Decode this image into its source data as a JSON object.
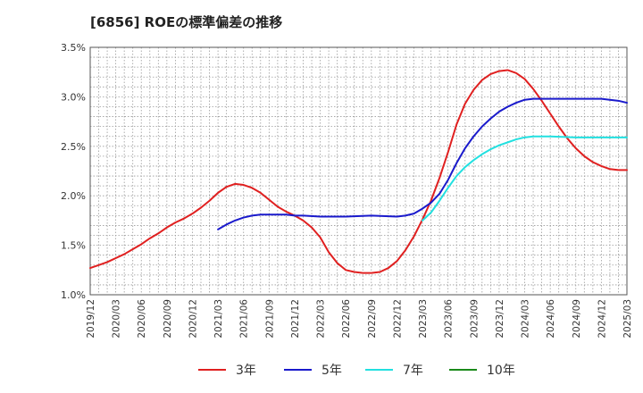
{
  "chart_data": {
    "type": "line",
    "title": "[6856]  ROEの標準偏差の推移",
    "xlabel": "",
    "ylabel": "",
    "ylim": [
      1.0,
      3.5
    ],
    "y_ticks": [
      "1.0%",
      "1.5%",
      "2.0%",
      "2.5%",
      "3.0%",
      "3.5%"
    ],
    "x_ticks": [
      "2019/12",
      "2020/03",
      "2020/06",
      "2020/09",
      "2020/12",
      "2021/03",
      "2021/06",
      "2021/09",
      "2021/12",
      "2022/03",
      "2022/06",
      "2022/09",
      "2022/12",
      "2023/03",
      "2023/06",
      "2023/09",
      "2023/12",
      "2024/03",
      "2024/06",
      "2024/09",
      "2024/12",
      "2025/03"
    ],
    "grid": true,
    "legend_position": "bottom",
    "series": [
      {
        "name": "3年",
        "color": "#e02020",
        "points": [
          [
            "2019/12",
            1.27
          ],
          [
            "2020/01",
            1.3
          ],
          [
            "2020/02",
            1.33
          ],
          [
            "2020/03",
            1.37
          ],
          [
            "2020/04",
            1.41
          ],
          [
            "2020/05",
            1.46
          ],
          [
            "2020/06",
            1.51
          ],
          [
            "2020/07",
            1.57
          ],
          [
            "2020/08",
            1.62
          ],
          [
            "2020/09",
            1.68
          ],
          [
            "2020/10",
            1.73
          ],
          [
            "2020/11",
            1.77
          ],
          [
            "2020/12",
            1.82
          ],
          [
            "2021/01",
            1.88
          ],
          [
            "2021/02",
            1.95
          ],
          [
            "2021/03",
            2.03
          ],
          [
            "2021/04",
            2.09
          ],
          [
            "2021/05",
            2.12
          ],
          [
            "2021/06",
            2.11
          ],
          [
            "2021/07",
            2.08
          ],
          [
            "2021/08",
            2.03
          ],
          [
            "2021/09",
            1.96
          ],
          [
            "2021/10",
            1.89
          ],
          [
            "2021/11",
            1.84
          ],
          [
            "2021/12",
            1.8
          ],
          [
            "2022/01",
            1.75
          ],
          [
            "2022/02",
            1.68
          ],
          [
            "2022/03",
            1.58
          ],
          [
            "2022/04",
            1.43
          ],
          [
            "2022/05",
            1.32
          ],
          [
            "2022/06",
            1.25
          ],
          [
            "2022/07",
            1.23
          ],
          [
            "2022/08",
            1.22
          ],
          [
            "2022/09",
            1.22
          ],
          [
            "2022/10",
            1.23
          ],
          [
            "2022/11",
            1.27
          ],
          [
            "2022/12",
            1.34
          ],
          [
            "2023/01",
            1.45
          ],
          [
            "2023/02",
            1.59
          ],
          [
            "2023/03",
            1.76
          ],
          [
            "2023/04",
            1.95
          ],
          [
            "2023/05",
            2.18
          ],
          [
            "2023/06",
            2.44
          ],
          [
            "2023/07",
            2.72
          ],
          [
            "2023/08",
            2.93
          ],
          [
            "2023/09",
            3.07
          ],
          [
            "2023/10",
            3.17
          ],
          [
            "2023/11",
            3.23
          ],
          [
            "2023/12",
            3.26
          ],
          [
            "2024/01",
            3.27
          ],
          [
            "2024/02",
            3.24
          ],
          [
            "2024/03",
            3.18
          ],
          [
            "2024/04",
            3.08
          ],
          [
            "2024/05",
            2.96
          ],
          [
            "2024/06",
            2.83
          ],
          [
            "2024/07",
            2.7
          ],
          [
            "2024/08",
            2.58
          ],
          [
            "2024/09",
            2.48
          ],
          [
            "2024/10",
            2.4
          ],
          [
            "2024/11",
            2.34
          ],
          [
            "2024/12",
            2.3
          ],
          [
            "2025/01",
            2.27
          ],
          [
            "2025/02",
            2.26
          ],
          [
            "2025/03",
            2.26
          ]
        ]
      },
      {
        "name": "5年",
        "color": "#1a1acc",
        "points": [
          [
            "2021/03",
            1.66
          ],
          [
            "2021/04",
            1.71
          ],
          [
            "2021/05",
            1.75
          ],
          [
            "2021/06",
            1.78
          ],
          [
            "2021/07",
            1.8
          ],
          [
            "2021/08",
            1.81
          ],
          [
            "2021/09",
            1.81
          ],
          [
            "2021/10",
            1.81
          ],
          [
            "2021/11",
            1.81
          ],
          [
            "2021/12",
            1.8
          ],
          [
            "2022/01",
            1.8
          ],
          [
            "2022/03",
            1.79
          ],
          [
            "2022/06",
            1.79
          ],
          [
            "2022/09",
            1.8
          ],
          [
            "2022/12",
            1.79
          ],
          [
            "2023/01",
            1.8
          ],
          [
            "2023/02",
            1.82
          ],
          [
            "2023/03",
            1.87
          ],
          [
            "2023/04",
            1.93
          ],
          [
            "2023/05",
            2.02
          ],
          [
            "2023/06",
            2.16
          ],
          [
            "2023/07",
            2.33
          ],
          [
            "2023/08",
            2.48
          ],
          [
            "2023/09",
            2.6
          ],
          [
            "2023/10",
            2.7
          ],
          [
            "2023/11",
            2.78
          ],
          [
            "2023/12",
            2.85
          ],
          [
            "2024/01",
            2.9
          ],
          [
            "2024/02",
            2.94
          ],
          [
            "2024/03",
            2.97
          ],
          [
            "2024/04",
            2.98
          ],
          [
            "2024/06",
            2.98
          ],
          [
            "2024/09",
            2.98
          ],
          [
            "2024/12",
            2.98
          ],
          [
            "2025/01",
            2.97
          ],
          [
            "2025/02",
            2.96
          ],
          [
            "2025/03",
            2.94
          ]
        ]
      },
      {
        "name": "7年",
        "color": "#22e0e0",
        "points": [
          [
            "2023/03",
            1.75
          ],
          [
            "2023/04",
            1.83
          ],
          [
            "2023/05",
            1.95
          ],
          [
            "2023/06",
            2.08
          ],
          [
            "2023/07",
            2.2
          ],
          [
            "2023/08",
            2.29
          ],
          [
            "2023/09",
            2.36
          ],
          [
            "2023/10",
            2.42
          ],
          [
            "2023/11",
            2.47
          ],
          [
            "2023/12",
            2.51
          ],
          [
            "2024/01",
            2.54
          ],
          [
            "2024/02",
            2.57
          ],
          [
            "2024/03",
            2.59
          ],
          [
            "2024/04",
            2.6
          ],
          [
            "2024/06",
            2.6
          ],
          [
            "2024/09",
            2.59
          ],
          [
            "2024/12",
            2.59
          ],
          [
            "2025/03",
            2.59
          ]
        ]
      },
      {
        "name": "10年",
        "color": "#1a8a1a",
        "points": []
      }
    ]
  }
}
